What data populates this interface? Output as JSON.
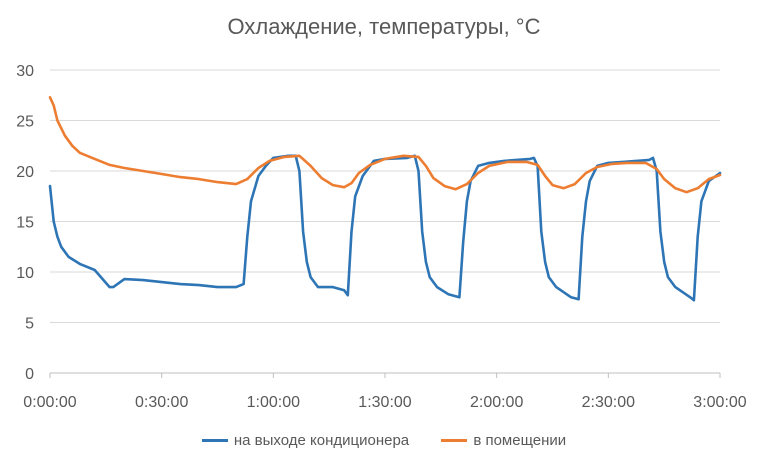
{
  "chart_data": {
    "type": "line",
    "title": "Охлаждение, температуры, °C",
    "xlabel": "",
    "ylabel": "",
    "ylim": [
      0,
      30
    ],
    "yticks": [
      "0",
      "5",
      "10",
      "15",
      "20",
      "25",
      "30"
    ],
    "xlim_minutes": [
      0,
      180
    ],
    "xticks": [
      "0:00:00",
      "0:30:00",
      "1:00:00",
      "1:30:00",
      "2:00:00",
      "2:30:00",
      "3:00:00"
    ],
    "grid": "horizontal",
    "legend_position": "bottom",
    "series": [
      {
        "name": "на выходе кондиционера",
        "color": "#2E75B6",
        "x": [
          "0:00:00",
          "0:01:00",
          "0:02:00",
          "0:03:00",
          "0:05:00",
          "0:08:00",
          "0:12:00",
          "0:16:00",
          "0:17:00",
          "0:20:00",
          "0:25:00",
          "0:30:00",
          "0:35:00",
          "0:40:00",
          "0:45:00",
          "0:50:00",
          "0:52:00",
          "0:53:00",
          "0:54:00",
          "0:56:00",
          "0:58:00",
          "1:00:00",
          "1:04:00",
          "1:06:00",
          "1:07:00",
          "1:08:00",
          "1:09:00",
          "1:10:00",
          "1:12:00",
          "1:16:00",
          "1:19:00",
          "1:20:00",
          "1:21:00",
          "1:22:00",
          "1:24:00",
          "1:27:00",
          "1:30:00",
          "1:36:00",
          "1:38:00",
          "1:39:00",
          "1:40:00",
          "1:41:00",
          "1:42:00",
          "1:44:00",
          "1:47:00",
          "1:50:00",
          "1:51:00",
          "1:52:00",
          "1:53:00",
          "1:55:00",
          "1:58:00",
          "2:02:00",
          "2:09:00",
          "2:10:00",
          "2:11:00",
          "2:12:00",
          "2:13:00",
          "2:14:00",
          "2:16:00",
          "2:20:00",
          "2:22:00",
          "2:23:00",
          "2:24:00",
          "2:25:00",
          "2:27:00",
          "2:30:00",
          "2:34:00",
          "2:41:00",
          "2:42:00",
          "2:43:00",
          "2:44:00",
          "2:45:00",
          "2:46:00",
          "2:48:00",
          "2:52:00",
          "2:53:00",
          "2:54:00",
          "2:55:00",
          "2:57:00",
          "3:00:00"
        ],
        "values": [
          18.5,
          15,
          13.5,
          12.5,
          11.5,
          10.8,
          10.2,
          8.5,
          8.5,
          9.3,
          9.2,
          9.0,
          8.8,
          8.7,
          8.5,
          8.5,
          8.8,
          13.5,
          17,
          19.5,
          20.5,
          21.3,
          21.5,
          21.5,
          20,
          14,
          11,
          9.5,
          8.5,
          8.5,
          8.2,
          7.7,
          14,
          17.5,
          19.5,
          21,
          21.2,
          21.3,
          21.5,
          20,
          14,
          11,
          9.5,
          8.5,
          7.8,
          7.5,
          13,
          17,
          19,
          20.5,
          20.8,
          21,
          21.2,
          21.3,
          20.5,
          14,
          11,
          9.5,
          8.5,
          7.5,
          7.3,
          13.5,
          17,
          19,
          20.5,
          20.8,
          20.9,
          21.1,
          21.3,
          20,
          14,
          11,
          9.5,
          8.5,
          7.5,
          7.2,
          13.5,
          17,
          19,
          19.8
        ]
      },
      {
        "name": "в помещении",
        "color": "#ED7D31",
        "x": [
          "0:00:00",
          "0:01:00",
          "0:02:00",
          "0:04:00",
          "0:06:00",
          "0:08:00",
          "0:12:00",
          "0:16:00",
          "0:20:00",
          "0:25:00",
          "0:30:00",
          "0:35:00",
          "0:40:00",
          "0:45:00",
          "0:50:00",
          "0:53:00",
          "0:56:00",
          "0:59:00",
          "1:03:00",
          "1:07:00",
          "1:10:00",
          "1:13:00",
          "1:16:00",
          "1:19:00",
          "1:21:00",
          "1:23:00",
          "1:26:00",
          "1:30:00",
          "1:35:00",
          "1:39:00",
          "1:41:00",
          "1:43:00",
          "1:46:00",
          "1:49:00",
          "1:52:00",
          "1:55:00",
          "1:58:00",
          "2:03:00",
          "2:08:00",
          "2:11:00",
          "2:13:00",
          "2:15:00",
          "2:18:00",
          "2:21:00",
          "2:24:00",
          "2:27:00",
          "2:31:00",
          "2:35:00",
          "2:40:00",
          "2:43:00",
          "2:45:00",
          "2:48:00",
          "2:51:00",
          "2:54:00",
          "2:57:00",
          "3:00:00"
        ],
        "values": [
          27.3,
          26.5,
          25,
          23.5,
          22.5,
          21.8,
          21.2,
          20.6,
          20.3,
          20.0,
          19.7,
          19.4,
          19.2,
          18.9,
          18.7,
          19.2,
          20.3,
          21,
          21.4,
          21.5,
          20.5,
          19.3,
          18.6,
          18.4,
          18.8,
          19.8,
          20.6,
          21.2,
          21.5,
          21.4,
          20.5,
          19.3,
          18.5,
          18.2,
          18.7,
          19.8,
          20.5,
          20.9,
          20.9,
          20.6,
          19.5,
          18.6,
          18.3,
          18.7,
          19.8,
          20.4,
          20.7,
          20.8,
          20.8,
          20.2,
          19.2,
          18.3,
          17.9,
          18.3,
          19.2,
          19.6
        ]
      }
    ]
  }
}
